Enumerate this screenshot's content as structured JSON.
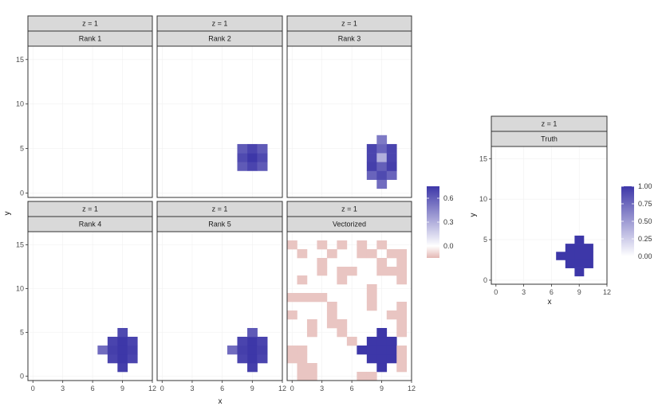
{
  "chart_data": [
    {
      "type": "heatmap",
      "id": "left-grid",
      "xlabel": "x",
      "ylabel": "y",
      "xlim": [
        0,
        12
      ],
      "ylim": [
        0,
        16
      ],
      "x_ticks": [
        0,
        3,
        6,
        9,
        12
      ],
      "x_tick_labels": [
        "0",
        "3",
        "6",
        "9",
        "12"
      ],
      "x_tick_labels_bottom_row": [
        "0",
        "3",
        "6",
        "9",
        "12"
      ],
      "y_ticks": [
        0,
        5,
        10,
        15
      ],
      "y_tick_labels": [
        "0",
        "5",
        "10",
        "15"
      ],
      "legend": {
        "position": "right",
        "ticks": [
          0.6,
          0.3,
          0.0
        ],
        "tick_labels": [
          "0.6",
          "0.3",
          "0.0"
        ],
        "range": [
          -0.15,
          0.75
        ],
        "colors": {
          "high": "#3d37a8",
          "mid": "#ffffff",
          "low": "#e4b7b3"
        }
      },
      "panels": [
        {
          "strip_top": "z = 1",
          "strip_bottom": "Rank 1",
          "cells": []
        },
        {
          "strip_top": "z = 1",
          "strip_bottom": "Rank 2",
          "cells": [
            [
              8,
              3,
              0.62
            ],
            [
              9,
              3,
              0.7
            ],
            [
              10,
              3,
              0.62
            ],
            [
              8,
              4,
              0.68
            ],
            [
              9,
              4,
              0.75
            ],
            [
              10,
              4,
              0.68
            ],
            [
              8,
              5,
              0.62
            ],
            [
              9,
              5,
              0.7
            ],
            [
              10,
              5,
              0.62
            ]
          ]
        },
        {
          "strip_top": "z = 1",
          "strip_bottom": "Rank 3",
          "cells": [
            [
              9,
              1,
              0.55
            ],
            [
              8,
              2,
              0.58
            ],
            [
              9,
              2,
              0.68
            ],
            [
              10,
              2,
              0.58
            ],
            [
              8,
              3,
              0.72
            ],
            [
              9,
              3,
              0.6
            ],
            [
              10,
              3,
              0.72
            ],
            [
              8,
              4,
              0.7
            ],
            [
              9,
              4,
              0.3
            ],
            [
              10,
              4,
              0.7
            ],
            [
              8,
              5,
              0.7
            ],
            [
              9,
              5,
              0.58
            ],
            [
              10,
              5,
              0.7
            ],
            [
              9,
              6,
              0.5
            ]
          ]
        },
        {
          "strip_top": "z = 1",
          "strip_bottom": "Rank 4",
          "cells": [
            [
              9,
              1,
              0.72
            ],
            [
              8,
              2,
              0.7
            ],
            [
              9,
              2,
              0.75
            ],
            [
              10,
              2,
              0.7
            ],
            [
              7,
              3,
              0.55
            ],
            [
              8,
              3,
              0.72
            ],
            [
              9,
              3,
              0.75
            ],
            [
              10,
              3,
              0.72
            ],
            [
              8,
              4,
              0.7
            ],
            [
              9,
              4,
              0.75
            ],
            [
              10,
              4,
              0.7
            ],
            [
              9,
              5,
              0.68
            ]
          ]
        },
        {
          "strip_top": "z = 1",
          "strip_bottom": "Rank 5",
          "cells": [
            [
              9,
              1,
              0.72
            ],
            [
              8,
              2,
              0.7
            ],
            [
              9,
              2,
              0.75
            ],
            [
              10,
              2,
              0.7
            ],
            [
              7,
              3,
              0.55
            ],
            [
              8,
              3,
              0.72
            ],
            [
              9,
              3,
              0.75
            ],
            [
              10,
              3,
              0.72
            ],
            [
              8,
              4,
              0.7
            ],
            [
              9,
              4,
              0.75
            ],
            [
              10,
              4,
              0.7
            ],
            [
              9,
              5,
              0.62
            ]
          ]
        },
        {
          "strip_top": "z = 1",
          "strip_bottom": "Vectorized",
          "cells": [
            [
              9,
              1,
              0.75
            ],
            [
              8,
              2,
              0.75
            ],
            [
              9,
              2,
              0.75
            ],
            [
              10,
              2,
              0.75
            ],
            [
              7,
              3,
              0.75
            ],
            [
              8,
              3,
              0.75
            ],
            [
              9,
              3,
              0.75
            ],
            [
              10,
              3,
              0.75
            ],
            [
              8,
              4,
              0.75
            ],
            [
              9,
              4,
              0.75
            ],
            [
              10,
              4,
              0.75
            ],
            [
              9,
              5,
              0.75
            ],
            [
              0,
              15,
              -0.12
            ],
            [
              1,
              14,
              -0.12
            ],
            [
              3,
              15,
              -0.12
            ],
            [
              4,
              14,
              -0.12
            ],
            [
              5,
              15,
              -0.12
            ],
            [
              7,
              15,
              -0.12
            ],
            [
              7,
              14,
              -0.12
            ],
            [
              8,
              14,
              -0.12
            ],
            [
              9,
              15,
              -0.12
            ],
            [
              10,
              14,
              -0.12
            ],
            [
              11,
              14,
              -0.12
            ],
            [
              3,
              12,
              -0.12
            ],
            [
              3,
              13,
              -0.12
            ],
            [
              11,
              13,
              -0.12
            ],
            [
              11,
              12,
              -0.12
            ],
            [
              11,
              11,
              -0.12
            ],
            [
              5,
              12,
              -0.12
            ],
            [
              6,
              12,
              -0.12
            ],
            [
              9,
              12,
              -0.12
            ],
            [
              9,
              13,
              -0.12
            ],
            [
              10,
              12,
              -0.12
            ],
            [
              1,
              11,
              -0.12
            ],
            [
              5,
              11,
              -0.12
            ],
            [
              8,
              10,
              -0.12
            ],
            [
              0,
              9,
              -0.12
            ],
            [
              1,
              9,
              -0.12
            ],
            [
              2,
              9,
              -0.12
            ],
            [
              3,
              9,
              -0.12
            ],
            [
              8,
              9,
              -0.12
            ],
            [
              4,
              8,
              -0.12
            ],
            [
              8,
              8,
              -0.12
            ],
            [
              11,
              8,
              -0.12
            ],
            [
              10,
              7,
              -0.12
            ],
            [
              11,
              7,
              -0.12
            ],
            [
              4,
              7,
              -0.12
            ],
            [
              4,
              6,
              -0.12
            ],
            [
              5,
              6,
              -0.12
            ],
            [
              0,
              7,
              -0.12
            ],
            [
              11,
              6,
              -0.12
            ],
            [
              2,
              6,
              -0.12
            ],
            [
              2,
              5,
              -0.12
            ],
            [
              5,
              5,
              -0.12
            ],
            [
              11,
              5,
              -0.12
            ],
            [
              6,
              4,
              -0.12
            ],
            [
              0,
              2,
              -0.12
            ],
            [
              1,
              2,
              -0.12
            ],
            [
              1,
              3,
              -0.12
            ],
            [
              0,
              3,
              -0.12
            ],
            [
              1,
              1,
              -0.12
            ],
            [
              2,
              1,
              -0.12
            ],
            [
              1,
              0,
              -0.12
            ],
            [
              2,
              0,
              -0.12
            ],
            [
              11,
              2,
              -0.12
            ],
            [
              11,
              1,
              -0.12
            ],
            [
              7,
              0,
              -0.12
            ],
            [
              8,
              0,
              -0.12
            ],
            [
              11,
              3,
              -0.12
            ]
          ]
        }
      ]
    },
    {
      "type": "heatmap",
      "id": "truth",
      "xlabel": "x",
      "ylabel": "y",
      "xlim": [
        0,
        12
      ],
      "ylim": [
        0,
        16
      ],
      "x_ticks": [
        0,
        3,
        6,
        9,
        12
      ],
      "x_tick_labels": [
        "0",
        "3",
        "6",
        "9",
        "12"
      ],
      "y_ticks": [
        0,
        5,
        10,
        15
      ],
      "y_tick_labels": [
        "0",
        "5",
        "10",
        "15"
      ],
      "legend": {
        "position": "right",
        "ticks": [
          1.0,
          0.75,
          0.5,
          0.25,
          0.0
        ],
        "tick_labels": [
          "1.00",
          "0.75",
          "0.50",
          "0.25",
          "0.00"
        ],
        "range": [
          0,
          1
        ],
        "colors": {
          "high": "#3d37a8",
          "low": "#ffffff"
        }
      },
      "panels": [
        {
          "strip_top": "z = 1",
          "strip_bottom": "Truth",
          "cells": [
            [
              9,
              1,
              1
            ],
            [
              8,
              2,
              1
            ],
            [
              9,
              2,
              1
            ],
            [
              10,
              2,
              1
            ],
            [
              7,
              3,
              1
            ],
            [
              8,
              3,
              1
            ],
            [
              9,
              3,
              1
            ],
            [
              10,
              3,
              1
            ],
            [
              8,
              4,
              1
            ],
            [
              9,
              4,
              1
            ],
            [
              10,
              4,
              1
            ],
            [
              9,
              5,
              1
            ]
          ]
        }
      ]
    }
  ]
}
